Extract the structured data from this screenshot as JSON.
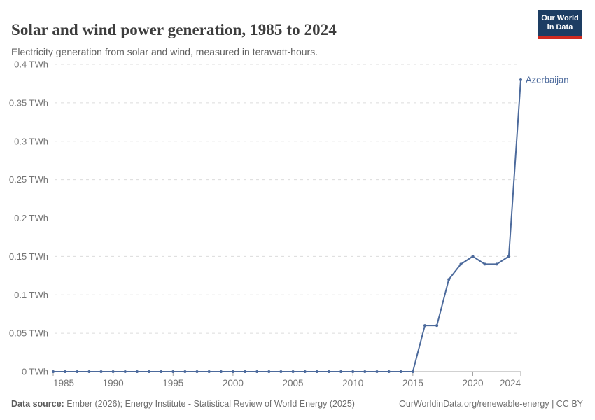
{
  "header": {
    "title": "Solar and wind power generation, 1985 to 2024",
    "subtitle": "Electricity generation from solar and wind, measured in terawatt-hours.",
    "logo": {
      "line1": "Our World",
      "line2": "in Data"
    }
  },
  "chart_data": {
    "type": "line",
    "title": "Solar and wind power generation, 1985 to 2024",
    "subtitle": "Electricity generation from solar and wind, measured in terawatt-hours.",
    "unit": "TWh",
    "x": [
      1985,
      1986,
      1987,
      1988,
      1989,
      1990,
      1991,
      1992,
      1993,
      1994,
      1995,
      1996,
      1997,
      1998,
      1999,
      2000,
      2001,
      2002,
      2003,
      2004,
      2005,
      2006,
      2007,
      2008,
      2009,
      2010,
      2011,
      2012,
      2013,
      2014,
      2015,
      2016,
      2017,
      2018,
      2019,
      2020,
      2021,
      2022,
      2023,
      2024
    ],
    "series": [
      {
        "name": "Azerbaijan",
        "values": [
          0,
          0,
          0,
          0,
          0,
          0,
          0,
          0,
          0,
          0,
          0,
          0,
          0,
          0,
          0,
          0,
          0,
          0,
          0,
          0,
          0,
          0,
          0,
          0,
          0,
          0,
          0,
          0,
          0,
          0,
          0,
          0.06,
          0.06,
          0.12,
          0.14,
          0.15,
          0.14,
          0.14,
          0.15,
          0.38
        ]
      }
    ],
    "ylim": [
      0,
      0.4
    ],
    "yticks": [
      {
        "value": 0,
        "label": "0 TWh"
      },
      {
        "value": 0.05,
        "label": "0.05 TWh"
      },
      {
        "value": 0.1,
        "label": "0.1 TWh"
      },
      {
        "value": 0.15,
        "label": "0.15 TWh"
      },
      {
        "value": 0.2,
        "label": "0.2 TWh"
      },
      {
        "value": 0.25,
        "label": "0.25 TWh"
      },
      {
        "value": 0.3,
        "label": "0.3 TWh"
      },
      {
        "value": 0.35,
        "label": "0.35 TWh"
      },
      {
        "value": 0.4,
        "label": "0.4 TWh"
      }
    ],
    "xticks": [
      1985,
      1990,
      1995,
      2000,
      2005,
      2010,
      2015,
      2020,
      2024
    ],
    "grid": "horizontal-dashed",
    "legend_position": "end-of-line-label",
    "line_color": "#4C6A9C"
  },
  "footer": {
    "source_label": "Data source:",
    "source_text": " Ember (2026); Energy Institute - Statistical Review of World Energy (2025)",
    "credit": "OurWorldinData.org/renewable-energy | CC BY"
  },
  "colors": {
    "line": "#4C6A9C",
    "title_text": "#3d3d3d",
    "subtitle_text": "#616161",
    "axis_text": "#757575",
    "gridline": "#dcdcdc",
    "axis_line": "#a3a3a3",
    "logo_navy": "#1d3d63",
    "logo_red": "#d12b20"
  }
}
